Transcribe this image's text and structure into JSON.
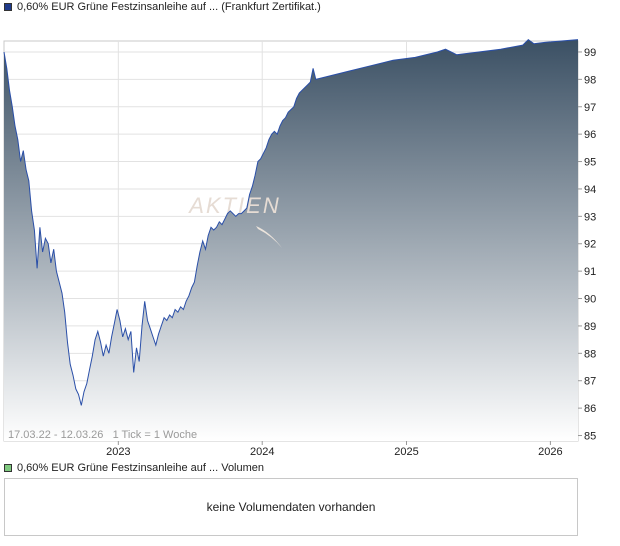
{
  "price_legend": {
    "label": "0,60% EUR Grüne Festzinsanleihe auf ... (Frankfurt Zertifikat.)",
    "color": "#1f3a8a"
  },
  "volume_legend": {
    "label": "0,60% EUR Grüne Festzinsanleihe auf ... Volumen",
    "color": "#7fc97f"
  },
  "watermark": "AKTIEN",
  "info_text": "17.03.22 - 12.03.26   1 Tick = 1 Woche",
  "volume_message": "keine Volumendaten vorhanden",
  "chart_data": {
    "type": "area",
    "line_color": "#2a4fa8",
    "fill_top_color": "#3b5064",
    "fill_bottom_color": "#ffffff",
    "grid": true,
    "ylim": [
      84.8,
      99.4
    ],
    "yticks": [
      85,
      86,
      87,
      88,
      89,
      90,
      91,
      92,
      93,
      94,
      95,
      96,
      97,
      98,
      99
    ],
    "xlim": [
      "2022-03-17",
      "2026-03-12"
    ],
    "xticks": [
      {
        "label": "2023",
        "date": "2023-01-01"
      },
      {
        "label": "2024",
        "date": "2024-01-01"
      },
      {
        "label": "2025",
        "date": "2025-01-01"
      },
      {
        "label": "2026",
        "date": "2026-01-01"
      }
    ],
    "points": [
      [
        "2022-03-17",
        99.0
      ],
      [
        "2022-03-24",
        98.4
      ],
      [
        "2022-03-31",
        97.6
      ],
      [
        "2022-04-07",
        97.0
      ],
      [
        "2022-04-14",
        96.3
      ],
      [
        "2022-04-21",
        95.8
      ],
      [
        "2022-04-28",
        95.0
      ],
      [
        "2022-05-05",
        95.4
      ],
      [
        "2022-05-12",
        94.7
      ],
      [
        "2022-05-19",
        94.3
      ],
      [
        "2022-05-26",
        93.2
      ],
      [
        "2022-06-02",
        92.5
      ],
      [
        "2022-06-09",
        91.1
      ],
      [
        "2022-06-16",
        92.6
      ],
      [
        "2022-06-23",
        91.7
      ],
      [
        "2022-06-30",
        92.2
      ],
      [
        "2022-07-07",
        92.0
      ],
      [
        "2022-07-14",
        91.3
      ],
      [
        "2022-07-21",
        91.8
      ],
      [
        "2022-07-28",
        91.0
      ],
      [
        "2022-08-04",
        90.6
      ],
      [
        "2022-08-11",
        90.2
      ],
      [
        "2022-08-18",
        89.5
      ],
      [
        "2022-08-25",
        88.4
      ],
      [
        "2022-09-01",
        87.6
      ],
      [
        "2022-09-08",
        87.2
      ],
      [
        "2022-09-15",
        86.7
      ],
      [
        "2022-09-22",
        86.5
      ],
      [
        "2022-09-29",
        86.1
      ],
      [
        "2022-10-06",
        86.6
      ],
      [
        "2022-10-13",
        86.9
      ],
      [
        "2022-10-20",
        87.4
      ],
      [
        "2022-10-27",
        87.9
      ],
      [
        "2022-11-03",
        88.5
      ],
      [
        "2022-11-10",
        88.8
      ],
      [
        "2022-11-17",
        88.4
      ],
      [
        "2022-11-24",
        87.9
      ],
      [
        "2022-12-01",
        88.3
      ],
      [
        "2022-12-08",
        88.0
      ],
      [
        "2022-12-15",
        88.6
      ],
      [
        "2022-12-22",
        89.1
      ],
      [
        "2022-12-29",
        89.6
      ],
      [
        "2023-01-05",
        89.2
      ],
      [
        "2023-01-12",
        88.6
      ],
      [
        "2023-01-19",
        88.9
      ],
      [
        "2023-01-26",
        88.5
      ],
      [
        "2023-02-02",
        88.8
      ],
      [
        "2023-02-09",
        87.3
      ],
      [
        "2023-02-16",
        88.2
      ],
      [
        "2023-02-23",
        87.7
      ],
      [
        "2023-03-02",
        89.0
      ],
      [
        "2023-03-09",
        89.9
      ],
      [
        "2023-03-16",
        89.2
      ],
      [
        "2023-03-23",
        88.9
      ],
      [
        "2023-03-30",
        88.6
      ],
      [
        "2023-04-06",
        88.3
      ],
      [
        "2023-04-13",
        88.7
      ],
      [
        "2023-04-20",
        89.0
      ],
      [
        "2023-04-27",
        89.3
      ],
      [
        "2023-05-04",
        89.2
      ],
      [
        "2023-05-11",
        89.4
      ],
      [
        "2023-05-18",
        89.3
      ],
      [
        "2023-05-25",
        89.6
      ],
      [
        "2023-06-01",
        89.5
      ],
      [
        "2023-06-08",
        89.7
      ],
      [
        "2023-06-15",
        89.6
      ],
      [
        "2023-06-22",
        89.9
      ],
      [
        "2023-06-29",
        90.1
      ],
      [
        "2023-07-06",
        90.4
      ],
      [
        "2023-07-13",
        90.6
      ],
      [
        "2023-07-20",
        91.2
      ],
      [
        "2023-07-27",
        91.7
      ],
      [
        "2023-08-03",
        92.1
      ],
      [
        "2023-08-10",
        91.8
      ],
      [
        "2023-08-17",
        92.3
      ],
      [
        "2023-08-24",
        92.6
      ],
      [
        "2023-08-31",
        92.5
      ],
      [
        "2023-09-07",
        92.6
      ],
      [
        "2023-09-14",
        92.8
      ],
      [
        "2023-09-21",
        92.7
      ],
      [
        "2023-09-28",
        92.9
      ],
      [
        "2023-10-05",
        93.1
      ],
      [
        "2023-10-12",
        93.2
      ],
      [
        "2023-10-19",
        93.1
      ],
      [
        "2023-10-26",
        93.0
      ],
      [
        "2023-11-02",
        93.1
      ],
      [
        "2023-11-09",
        93.1
      ],
      [
        "2023-11-16",
        93.2
      ],
      [
        "2023-11-23",
        93.3
      ],
      [
        "2023-11-30",
        93.8
      ],
      [
        "2023-12-07",
        94.1
      ],
      [
        "2023-12-14",
        94.5
      ],
      [
        "2023-12-21",
        95.0
      ],
      [
        "2023-12-28",
        95.1
      ],
      [
        "2024-01-04",
        95.3
      ],
      [
        "2024-01-11",
        95.5
      ],
      [
        "2024-01-18",
        95.8
      ],
      [
        "2024-01-25",
        96.0
      ],
      [
        "2024-02-01",
        96.1
      ],
      [
        "2024-02-08",
        96.0
      ],
      [
        "2024-02-15",
        96.3
      ],
      [
        "2024-02-22",
        96.5
      ],
      [
        "2024-02-29",
        96.6
      ],
      [
        "2024-03-07",
        96.8
      ],
      [
        "2024-03-14",
        96.9
      ],
      [
        "2024-03-21",
        97.0
      ],
      [
        "2024-03-28",
        97.3
      ],
      [
        "2024-04-04",
        97.5
      ],
      [
        "2024-04-11",
        97.6
      ],
      [
        "2024-04-18",
        97.7
      ],
      [
        "2024-04-25",
        97.8
      ],
      [
        "2024-05-02",
        97.9
      ],
      [
        "2024-05-09",
        98.4
      ],
      [
        "2024-05-16",
        98.0
      ],
      [
        "2024-06-13",
        98.1
      ],
      [
        "2024-08-08",
        98.3
      ],
      [
        "2024-10-03",
        98.5
      ],
      [
        "2024-11-28",
        98.7
      ],
      [
        "2025-01-23",
        98.8
      ],
      [
        "2025-03-20",
        99.0
      ],
      [
        "2025-04-10",
        99.1
      ],
      [
        "2025-05-08",
        98.9
      ],
      [
        "2025-07-03",
        99.0
      ],
      [
        "2025-08-28",
        99.1
      ],
      [
        "2025-10-23",
        99.25
      ],
      [
        "2025-11-06",
        99.45
      ],
      [
        "2025-11-20",
        99.3
      ],
      [
        "2025-12-18",
        99.35
      ],
      [
        "2026-01-29",
        99.4
      ],
      [
        "2026-03-12",
        99.45
      ]
    ]
  }
}
